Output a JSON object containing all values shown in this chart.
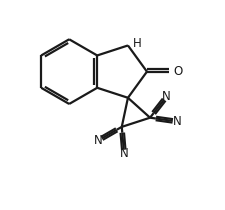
{
  "bg": "#ffffff",
  "lc": "#1a1a1a",
  "lw": 1.6,
  "fs": 8.5,
  "fw": 2.26,
  "fh": 2.1,
  "dpi": 100,
  "xlim": [
    0,
    10
  ],
  "ylim": [
    0,
    10
  ],
  "bc_x": 2.9,
  "bc_y": 6.6,
  "br": 1.55
}
